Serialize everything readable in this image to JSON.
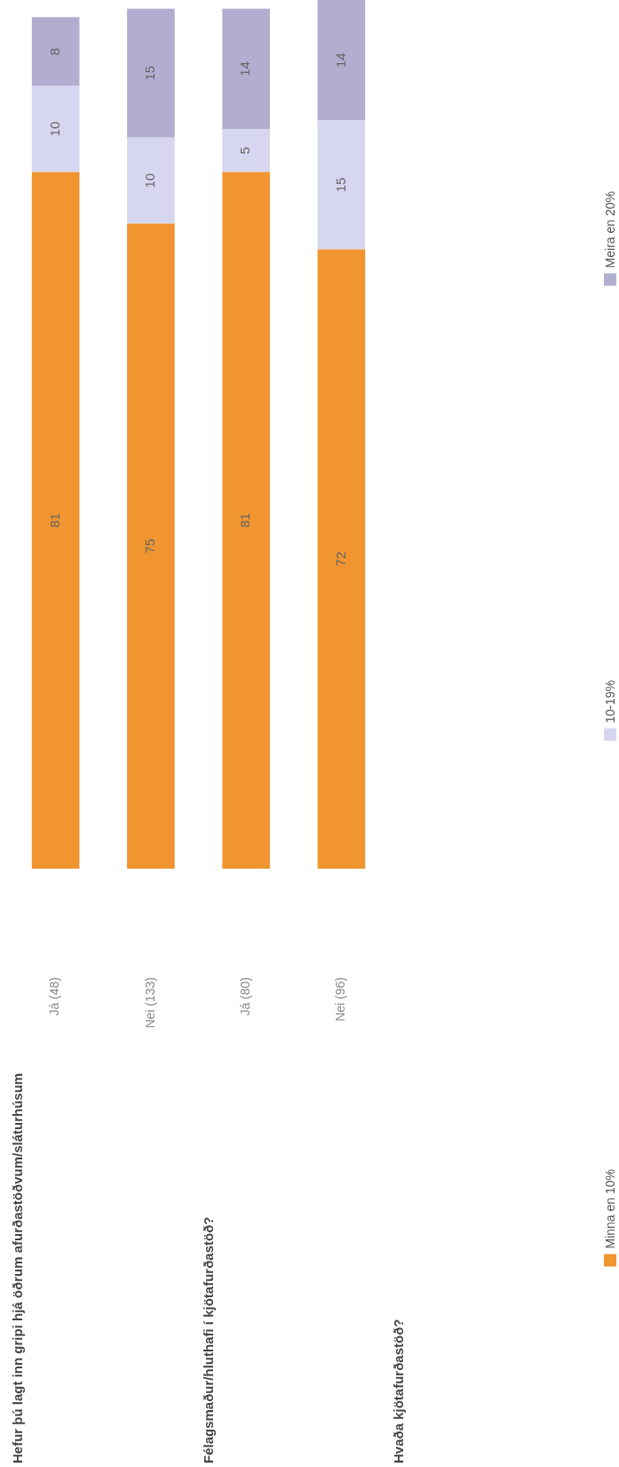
{
  "chart_data": {
    "type": "bar",
    "stacked": true,
    "data_labels": true,
    "legend": "bottom",
    "tick_labels": "x",
    "categories": [
      "Já (48)",
      "Nei (133)",
      "Já (80)",
      "Nei (96)"
    ],
    "series": [
      {
        "name": "Minna en 10%",
        "color": "#f0952f",
        "values": [
          81,
          75,
          81,
          72
        ]
      },
      {
        "name": "10-19%",
        "color": "#d6d6f0",
        "values": [
          10,
          10,
          5,
          15
        ]
      },
      {
        "name": "Meira en 20%",
        "color": "#b1aed0",
        "values": [
          8,
          15,
          14,
          14
        ]
      }
    ],
    "ylim": [
      0,
      101
    ],
    "annotations": [
      "Hefur þú lagt inn gripi hjá öðrum afurðastöðvum/sláturhúsum",
      "Félagsmaður/hluthafi í kjötafurðastöð?",
      "Hvaða kjötafurðastöð?"
    ]
  }
}
